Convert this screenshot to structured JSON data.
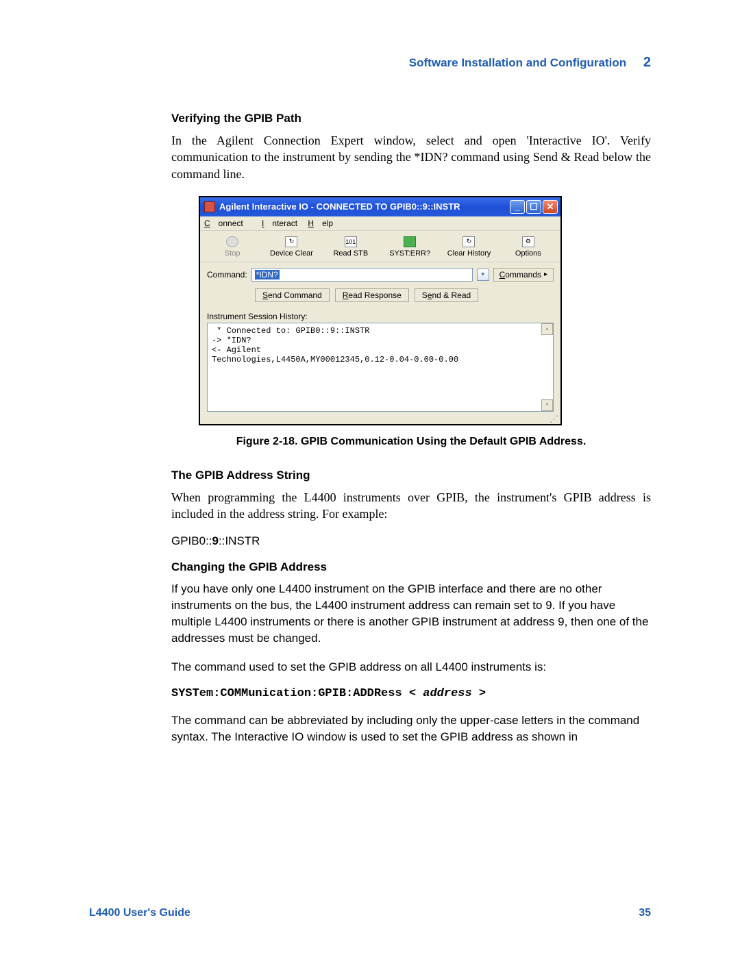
{
  "header": {
    "section_title": "Software Installation and Configuration",
    "chapter_number": "2"
  },
  "sections": {
    "s1_title": "Verifying the GPIB Path",
    "s1_para": "In the Agilent Connection Expert window, select and open 'Interactive IO'. Verify communication to the instrument by sending the *IDN? command using Send & Read below the command line.",
    "caption": "Figure 2-18. GPIB Communication Using the Default GPIB Address.",
    "s2_title": "The GPIB Address String",
    "s2_para": "When programming the L4400 instruments over GPIB, the instrument's GPIB address is included in the address string. For example:",
    "addr_pre": "GPIB0::",
    "addr_bold": "9",
    "addr_post": "::INSTR",
    "s3_title": "Changing the GPIB Address",
    "s3_para1": "If you have only one L4400 instrument on the GPIB interface and there are no other instruments on the bus, the L4400 instrument address can remain set to 9. If you have multiple L4400 instruments or there is another GPIB instrument at address 9, then one of the addresses must be changed.",
    "s3_para2": "The command used to set the GPIB address on all L4400 instruments is:",
    "cmd_syntax": "SYSTem:COMMunication:GPIB:ADDRess < ",
    "cmd_ital": "address",
    "cmd_post": " >",
    "s3_para3": "The command can be abbreviated by including only the upper-case letters in the command syntax. The Interactive IO window is used to set the GPIB address as shown in"
  },
  "screenshot": {
    "title": "Agilent Interactive IO - CONNECTED TO GPIB0::9::INSTR",
    "menu": {
      "connect": "Connect",
      "interact": "Interact",
      "help": "Help"
    },
    "toolbar": {
      "stop": "Stop",
      "device_clear": "Device Clear",
      "read_stb": "Read STB",
      "read_stb_icon": "101",
      "syst_err": "SYST:ERR?",
      "clear_history": "Clear History",
      "options": "Options"
    },
    "command_label": "Command:",
    "command_value": "*IDN?",
    "commands_btn": "Commands",
    "send_command": "Send Command",
    "read_response": "Read Response",
    "send_read": "Send & Read",
    "history_label": "Instrument Session History:",
    "history_text": " * Connected to: GPIB0::9::INSTR\n-> *IDN?\n<- Agilent\nTechnologies,L4450A,MY00012345,0.12-0.04-0.00-0.00"
  },
  "footer": {
    "guide": "L4400 User's Guide",
    "page": "35"
  }
}
